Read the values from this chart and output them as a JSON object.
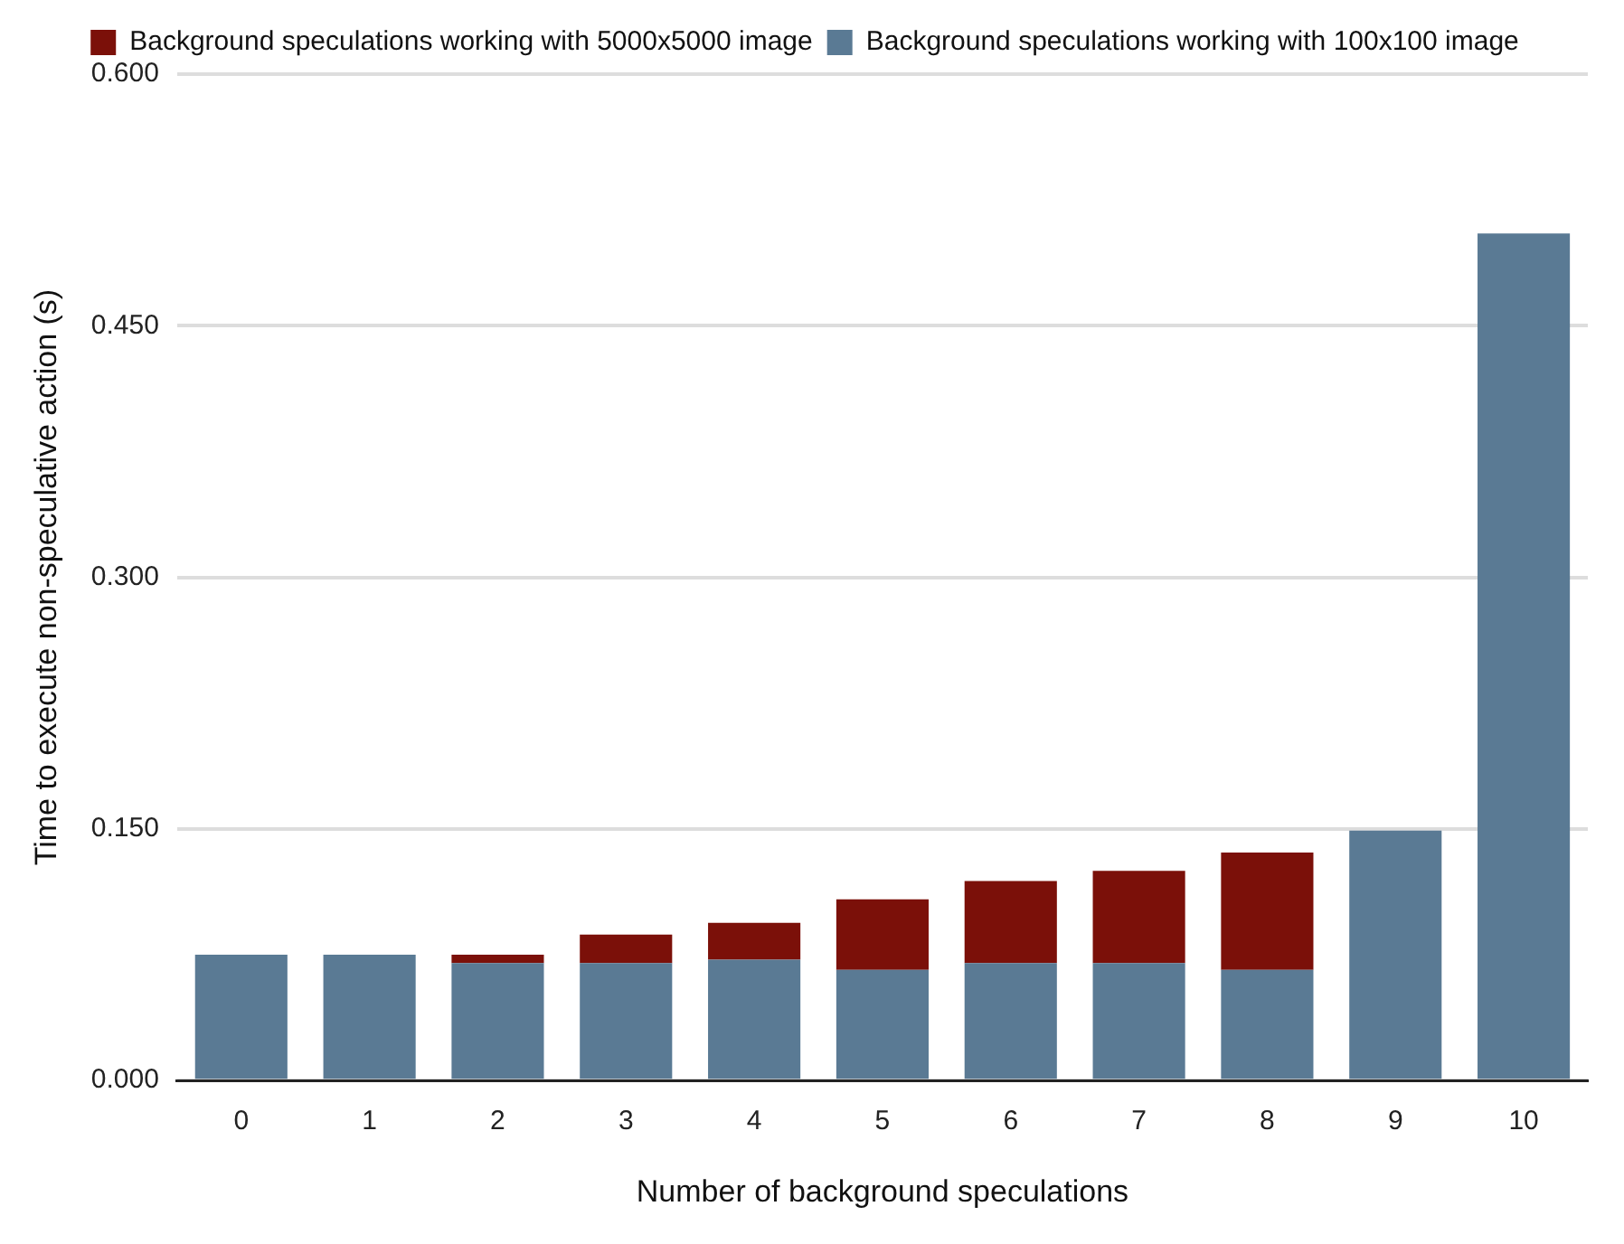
{
  "chart_data": {
    "type": "bar",
    "stacked": true,
    "xlabel": "Number of background speculations",
    "ylabel": "Time to execute non-speculative action (s)",
    "categories": [
      "0",
      "1",
      "2",
      "3",
      "4",
      "5",
      "6",
      "7",
      "8",
      "9",
      "10"
    ],
    "series": [
      {
        "name": "Background speculations working with 100x100 image",
        "color": "#5a7a94",
        "values": [
          0.075,
          0.075,
          0.07,
          0.07,
          0.072,
          0.066,
          0.07,
          0.07,
          0.066,
          0.149,
          0.505
        ]
      },
      {
        "name": "Background speculations working with 5000x5000 image",
        "color": "#7b1009",
        "values": [
          null,
          null,
          0.005,
          0.017,
          0.022,
          0.042,
          0.049,
          0.055,
          0.07,
          null,
          null
        ]
      }
    ],
    "ylim": [
      0,
      0.6
    ],
    "yticks": [
      {
        "value": 0,
        "label": "0.000"
      },
      {
        "value": 0.15,
        "label": "0.150"
      },
      {
        "value": 0.3,
        "label": "0.300"
      },
      {
        "value": 0.45,
        "label": "0.450"
      },
      {
        "value": 0.6,
        "label": "0.600"
      }
    ],
    "grid": "y",
    "legend": "top"
  }
}
